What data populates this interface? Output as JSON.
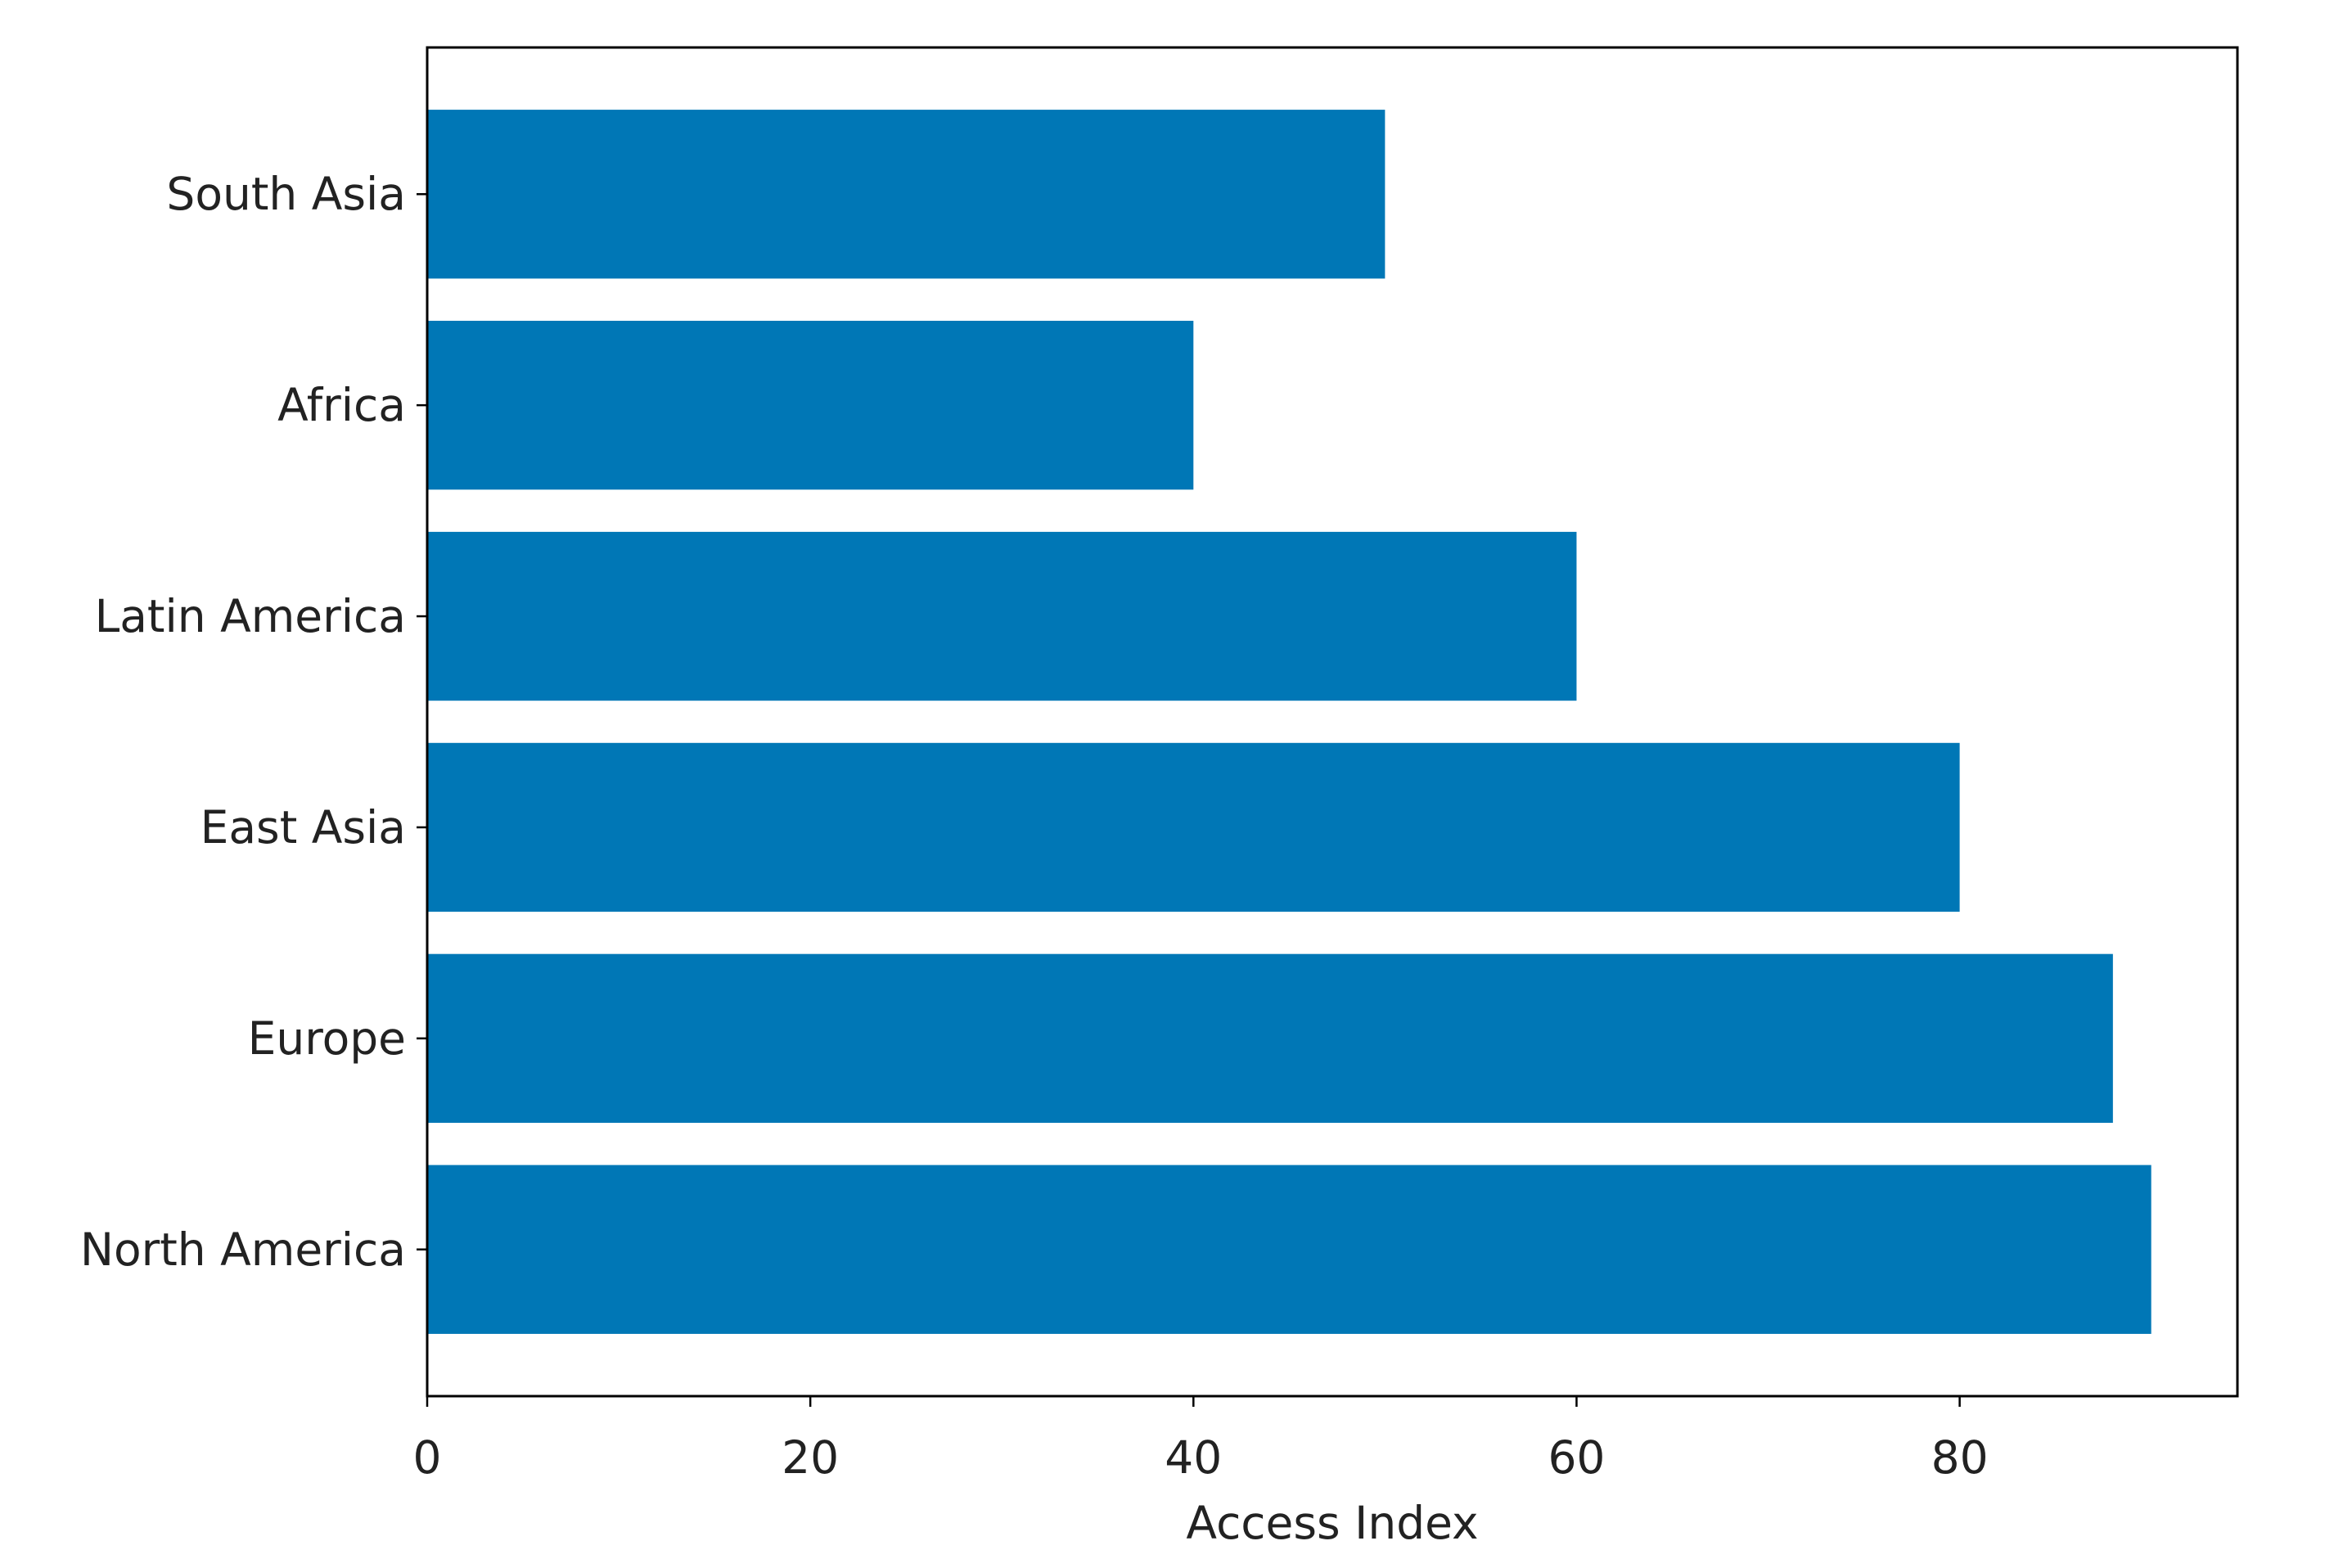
{
  "chart_data": {
    "type": "barh",
    "x_label": "Access Index",
    "categories": [
      "North America",
      "Europe",
      "East Asia",
      "Latin America",
      "Africa",
      "South Asia"
    ],
    "values": [
      90,
      88,
      80,
      60,
      40,
      50
    ],
    "color": "#0077b6",
    "xlim": [
      0,
      94.5
    ],
    "xticks": [
      0,
      20,
      40,
      60,
      80
    ],
    "grid": false
  }
}
